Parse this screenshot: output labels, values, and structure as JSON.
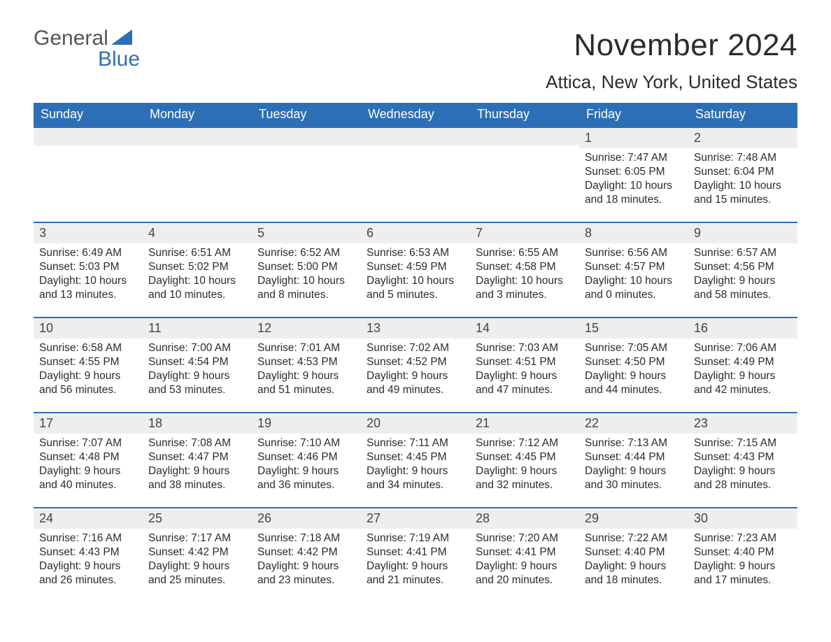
{
  "logo": {
    "word1": "General",
    "word2": "Blue"
  },
  "title": "November 2024",
  "location": "Attica, New York, United States",
  "brand_color": "#2d6fb7",
  "header_bg": "#2d6fb7",
  "header_text_color": "#ffffff",
  "daynum_bg": "#eeeeee",
  "days_of_week": [
    "Sunday",
    "Monday",
    "Tuesday",
    "Wednesday",
    "Thursday",
    "Friday",
    "Saturday"
  ],
  "weeks": [
    [
      null,
      null,
      null,
      null,
      null,
      {
        "n": "1",
        "sunrise": "Sunrise: 7:47 AM",
        "sunset": "Sunset: 6:05 PM",
        "daylight1": "Daylight: 10 hours",
        "daylight2": "and 18 minutes."
      },
      {
        "n": "2",
        "sunrise": "Sunrise: 7:48 AM",
        "sunset": "Sunset: 6:04 PM",
        "daylight1": "Daylight: 10 hours",
        "daylight2": "and 15 minutes."
      }
    ],
    [
      {
        "n": "3",
        "sunrise": "Sunrise: 6:49 AM",
        "sunset": "Sunset: 5:03 PM",
        "daylight1": "Daylight: 10 hours",
        "daylight2": "and 13 minutes."
      },
      {
        "n": "4",
        "sunrise": "Sunrise: 6:51 AM",
        "sunset": "Sunset: 5:02 PM",
        "daylight1": "Daylight: 10 hours",
        "daylight2": "and 10 minutes."
      },
      {
        "n": "5",
        "sunrise": "Sunrise: 6:52 AM",
        "sunset": "Sunset: 5:00 PM",
        "daylight1": "Daylight: 10 hours",
        "daylight2": "and 8 minutes."
      },
      {
        "n": "6",
        "sunrise": "Sunrise: 6:53 AM",
        "sunset": "Sunset: 4:59 PM",
        "daylight1": "Daylight: 10 hours",
        "daylight2": "and 5 minutes."
      },
      {
        "n": "7",
        "sunrise": "Sunrise: 6:55 AM",
        "sunset": "Sunset: 4:58 PM",
        "daylight1": "Daylight: 10 hours",
        "daylight2": "and 3 minutes."
      },
      {
        "n": "8",
        "sunrise": "Sunrise: 6:56 AM",
        "sunset": "Sunset: 4:57 PM",
        "daylight1": "Daylight: 10 hours",
        "daylight2": "and 0 minutes."
      },
      {
        "n": "9",
        "sunrise": "Sunrise: 6:57 AM",
        "sunset": "Sunset: 4:56 PM",
        "daylight1": "Daylight: 9 hours",
        "daylight2": "and 58 minutes."
      }
    ],
    [
      {
        "n": "10",
        "sunrise": "Sunrise: 6:58 AM",
        "sunset": "Sunset: 4:55 PM",
        "daylight1": "Daylight: 9 hours",
        "daylight2": "and 56 minutes."
      },
      {
        "n": "11",
        "sunrise": "Sunrise: 7:00 AM",
        "sunset": "Sunset: 4:54 PM",
        "daylight1": "Daylight: 9 hours",
        "daylight2": "and 53 minutes."
      },
      {
        "n": "12",
        "sunrise": "Sunrise: 7:01 AM",
        "sunset": "Sunset: 4:53 PM",
        "daylight1": "Daylight: 9 hours",
        "daylight2": "and 51 minutes."
      },
      {
        "n": "13",
        "sunrise": "Sunrise: 7:02 AM",
        "sunset": "Sunset: 4:52 PM",
        "daylight1": "Daylight: 9 hours",
        "daylight2": "and 49 minutes."
      },
      {
        "n": "14",
        "sunrise": "Sunrise: 7:03 AM",
        "sunset": "Sunset: 4:51 PM",
        "daylight1": "Daylight: 9 hours",
        "daylight2": "and 47 minutes."
      },
      {
        "n": "15",
        "sunrise": "Sunrise: 7:05 AM",
        "sunset": "Sunset: 4:50 PM",
        "daylight1": "Daylight: 9 hours",
        "daylight2": "and 44 minutes."
      },
      {
        "n": "16",
        "sunrise": "Sunrise: 7:06 AM",
        "sunset": "Sunset: 4:49 PM",
        "daylight1": "Daylight: 9 hours",
        "daylight2": "and 42 minutes."
      }
    ],
    [
      {
        "n": "17",
        "sunrise": "Sunrise: 7:07 AM",
        "sunset": "Sunset: 4:48 PM",
        "daylight1": "Daylight: 9 hours",
        "daylight2": "and 40 minutes."
      },
      {
        "n": "18",
        "sunrise": "Sunrise: 7:08 AM",
        "sunset": "Sunset: 4:47 PM",
        "daylight1": "Daylight: 9 hours",
        "daylight2": "and 38 minutes."
      },
      {
        "n": "19",
        "sunrise": "Sunrise: 7:10 AM",
        "sunset": "Sunset: 4:46 PM",
        "daylight1": "Daylight: 9 hours",
        "daylight2": "and 36 minutes."
      },
      {
        "n": "20",
        "sunrise": "Sunrise: 7:11 AM",
        "sunset": "Sunset: 4:45 PM",
        "daylight1": "Daylight: 9 hours",
        "daylight2": "and 34 minutes."
      },
      {
        "n": "21",
        "sunrise": "Sunrise: 7:12 AM",
        "sunset": "Sunset: 4:45 PM",
        "daylight1": "Daylight: 9 hours",
        "daylight2": "and 32 minutes."
      },
      {
        "n": "22",
        "sunrise": "Sunrise: 7:13 AM",
        "sunset": "Sunset: 4:44 PM",
        "daylight1": "Daylight: 9 hours",
        "daylight2": "and 30 minutes."
      },
      {
        "n": "23",
        "sunrise": "Sunrise: 7:15 AM",
        "sunset": "Sunset: 4:43 PM",
        "daylight1": "Daylight: 9 hours",
        "daylight2": "and 28 minutes."
      }
    ],
    [
      {
        "n": "24",
        "sunrise": "Sunrise: 7:16 AM",
        "sunset": "Sunset: 4:43 PM",
        "daylight1": "Daylight: 9 hours",
        "daylight2": "and 26 minutes."
      },
      {
        "n": "25",
        "sunrise": "Sunrise: 7:17 AM",
        "sunset": "Sunset: 4:42 PM",
        "daylight1": "Daylight: 9 hours",
        "daylight2": "and 25 minutes."
      },
      {
        "n": "26",
        "sunrise": "Sunrise: 7:18 AM",
        "sunset": "Sunset: 4:42 PM",
        "daylight1": "Daylight: 9 hours",
        "daylight2": "and 23 minutes."
      },
      {
        "n": "27",
        "sunrise": "Sunrise: 7:19 AM",
        "sunset": "Sunset: 4:41 PM",
        "daylight1": "Daylight: 9 hours",
        "daylight2": "and 21 minutes."
      },
      {
        "n": "28",
        "sunrise": "Sunrise: 7:20 AM",
        "sunset": "Sunset: 4:41 PM",
        "daylight1": "Daylight: 9 hours",
        "daylight2": "and 20 minutes."
      },
      {
        "n": "29",
        "sunrise": "Sunrise: 7:22 AM",
        "sunset": "Sunset: 4:40 PM",
        "daylight1": "Daylight: 9 hours",
        "daylight2": "and 18 minutes."
      },
      {
        "n": "30",
        "sunrise": "Sunrise: 7:23 AM",
        "sunset": "Sunset: 4:40 PM",
        "daylight1": "Daylight: 9 hours",
        "daylight2": "and 17 minutes."
      }
    ]
  ]
}
